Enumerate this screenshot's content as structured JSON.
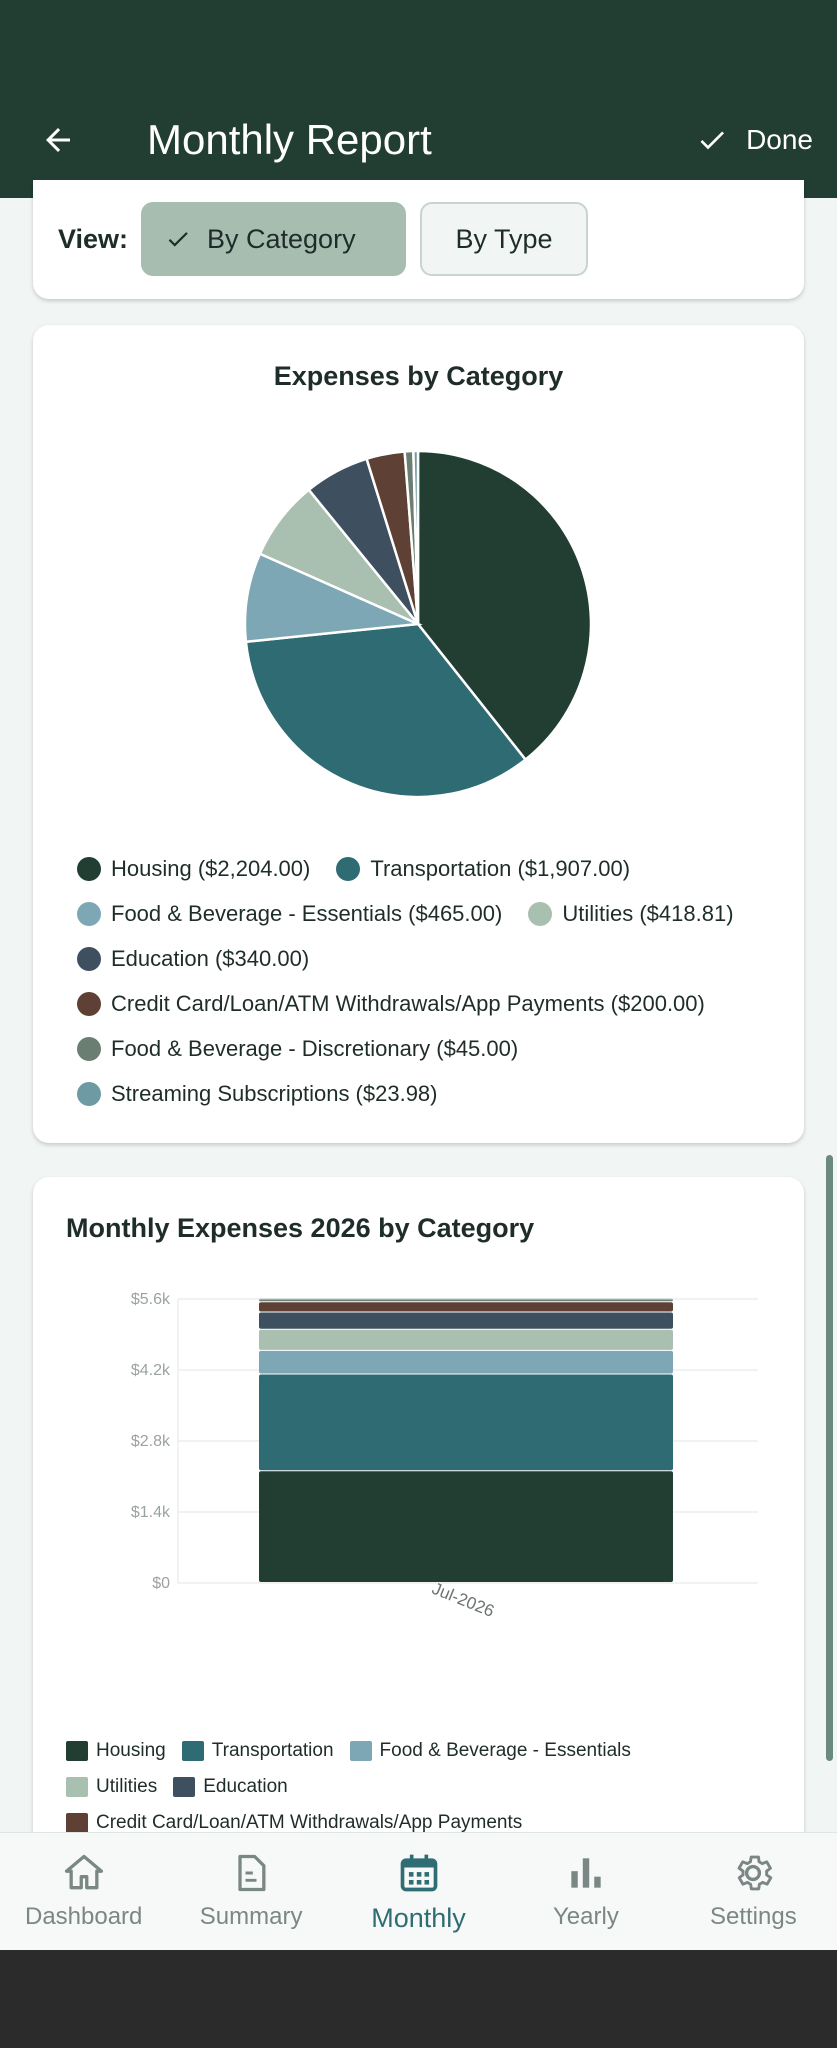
{
  "appbar": {
    "title": "Monthly Report",
    "back_icon": "arrow-left-icon",
    "done_label": "Done"
  },
  "view_toggle": {
    "label": "View:",
    "options": [
      {
        "label": "By Category",
        "selected": true
      },
      {
        "label": "By Type",
        "selected": false
      }
    ]
  },
  "pie_card": {
    "title": "Expenses by Category",
    "legend": [
      {
        "label": "Housing ($2,204.00)",
        "color": "#223d32"
      },
      {
        "label": "Transportation ($1,907.00)",
        "color": "#2e6b73"
      },
      {
        "label": "Food & Beverage - Essentials ($465.00)",
        "color": "#7ea7b5"
      },
      {
        "label": "Utilities ($418.81)",
        "color": "#a9bfb0"
      },
      {
        "label": "Education ($340.00)",
        "color": "#3e4f60"
      },
      {
        "label": "Credit Card/Loan/ATM Withdrawals/App Payments ($200.00)",
        "color": "#5e4035"
      },
      {
        "label": "Food & Beverage - Discretionary ($45.00)",
        "color": "#6b7e72"
      },
      {
        "label": "Streaming Subscriptions ($23.98)",
        "color": "#6e9aa3"
      }
    ]
  },
  "bar_card": {
    "title": "Monthly Expenses 2026 by Category",
    "legend": [
      {
        "label": "Housing",
        "color": "#223d32"
      },
      {
        "label": "Transportation",
        "color": "#2e6b73"
      },
      {
        "label": "Food & Beverage - Essentials",
        "color": "#7ea7b5"
      },
      {
        "label": "Utilities",
        "color": "#a9bfb0"
      },
      {
        "label": "Education",
        "color": "#3e4f60"
      },
      {
        "label": "Credit Card/Loan/ATM Withdrawals/App Payments",
        "color": "#5e4035"
      }
    ]
  },
  "chart_data": [
    {
      "type": "pie",
      "title": "Expenses by Category",
      "categories": [
        "Housing",
        "Transportation",
        "Food & Beverage - Essentials",
        "Utilities",
        "Education",
        "Credit Card/Loan/ATM Withdrawals/App Payments",
        "Food & Beverage - Discretionary",
        "Streaming Subscriptions"
      ],
      "values": [
        2204.0,
        1907.0,
        465.0,
        418.81,
        340.0,
        200.0,
        45.0,
        23.98
      ],
      "colors": [
        "#223d32",
        "#2e6b73",
        "#7ea7b5",
        "#a9bfb0",
        "#3e4f60",
        "#5e4035",
        "#6b7e72",
        "#6e9aa3"
      ]
    },
    {
      "type": "bar",
      "stacked": true,
      "title": "Monthly Expenses 2026 by Category",
      "categories": [
        "Jul-2026"
      ],
      "y_ticks": [
        "$0",
        "$1.4k",
        "$2.8k",
        "$4.2k",
        "$5.6k"
      ],
      "ylim": [
        0,
        5600
      ],
      "grid": true,
      "series": [
        {
          "name": "Housing",
          "values": [
            2204.0
          ],
          "color": "#223d32"
        },
        {
          "name": "Transportation",
          "values": [
            1907.0
          ],
          "color": "#2e6b73"
        },
        {
          "name": "Food & Beverage - Essentials",
          "values": [
            465.0
          ],
          "color": "#7ea7b5"
        },
        {
          "name": "Utilities",
          "values": [
            418.81
          ],
          "color": "#a9bfb0"
        },
        {
          "name": "Education",
          "values": [
            340.0
          ],
          "color": "#3e4f60"
        },
        {
          "name": "Credit Card/Loan/ATM Withdrawals/App Payments",
          "values": [
            200.0
          ],
          "color": "#5e4035"
        },
        {
          "name": "Food & Beverage - Discretionary",
          "values": [
            45.0
          ],
          "color": "#6b7e72"
        },
        {
          "name": "Streaming Subscriptions",
          "values": [
            23.98
          ],
          "color": "#6e9aa3"
        }
      ]
    }
  ],
  "bottom_nav": [
    {
      "label": "Dashboard",
      "icon": "home-icon",
      "active": false
    },
    {
      "label": "Summary",
      "icon": "document-icon",
      "active": false
    },
    {
      "label": "Monthly",
      "icon": "calendar-icon",
      "active": true
    },
    {
      "label": "Yearly",
      "icon": "bar-chart-icon",
      "active": false
    },
    {
      "label": "Settings",
      "icon": "gear-icon",
      "active": false
    }
  ]
}
